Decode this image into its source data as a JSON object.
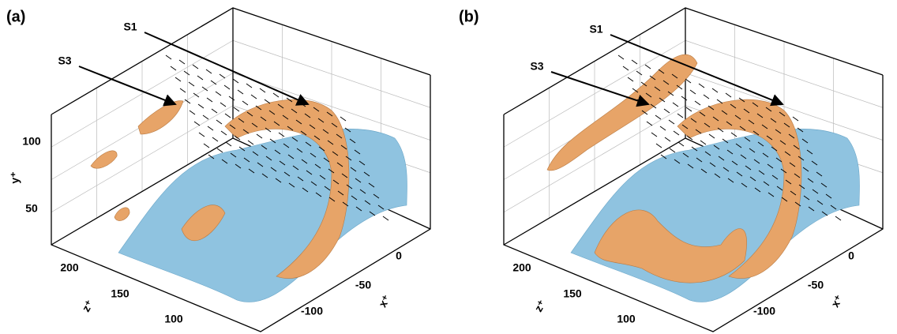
{
  "panels": [
    {
      "label": "(a)",
      "annotations": [
        "S1",
        "S3"
      ],
      "y_axis": {
        "label": "y⁺",
        "ticks": [
          "100",
          "50"
        ]
      },
      "z_axis": {
        "label": "z⁺",
        "ticks": [
          "200",
          "150",
          "100"
        ]
      },
      "x_axis": {
        "label": "x⁺",
        "ticks": [
          "0",
          "-50",
          "-100"
        ]
      }
    },
    {
      "label": "(b)",
      "annotations": [
        "S1",
        "S3"
      ],
      "z_axis": {
        "label": "z⁺",
        "ticks": [
          "200",
          "150",
          "100"
        ]
      },
      "x_axis": {
        "label": "x⁺",
        "ticks": [
          "0",
          "-50",
          "-100"
        ]
      }
    }
  ]
}
